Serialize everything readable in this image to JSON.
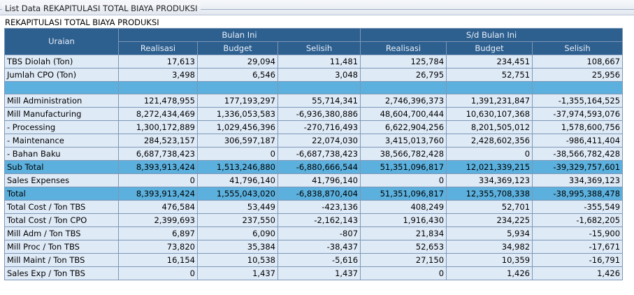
{
  "panel": {
    "title": "List Data REKAPITULASI TOTAL BIAYA PRODUKSI"
  },
  "report": {
    "title": "REKAPITULASI TOTAL BIAYA PRODUKSI"
  },
  "headers": {
    "uraian": "Uraian",
    "group1": "Bulan Ini",
    "group2": "S/d Bulan Ini",
    "sub": [
      "Realisasi",
      "Budget",
      "Selisih",
      "Realisasi",
      "Budget",
      "Selisih"
    ]
  },
  "rows": [
    {
      "label": "TBS Diolah (Ton)",
      "values": [
        "17,613",
        "29,094",
        "11,481",
        "125,784",
        "234,451",
        "108,667"
      ]
    },
    {
      "label": "Jumlah CPO (Ton)",
      "values": [
        "3,498",
        "6,546",
        "3,048",
        "26,795",
        "52,751",
        "25,956"
      ]
    },
    {
      "label": "",
      "values": [
        "",
        "",
        "",
        "",
        "",
        ""
      ],
      "style": "spacer"
    },
    {
      "label": "Mill Administration",
      "values": [
        "121,478,955",
        "177,193,297",
        "55,714,341",
        "2,746,396,373",
        "1,391,231,847",
        "-1,355,164,525"
      ]
    },
    {
      "label": "Mill Manufacturing",
      "values": [
        "8,272,434,469",
        "1,336,053,583",
        "-6,936,380,886",
        "48,604,700,444",
        "10,630,107,368",
        "-37,974,593,076"
      ]
    },
    {
      "label": "- Processing",
      "values": [
        "1,300,172,889",
        "1,029,456,396",
        "-270,716,493",
        "6,622,904,256",
        "8,201,505,012",
        "1,578,600,756"
      ]
    },
    {
      "label": "- Maintenance",
      "values": [
        "284,523,157",
        "306,597,187",
        "22,074,030",
        "3,415,013,760",
        "2,428,602,356",
        "-986,411,404"
      ]
    },
    {
      "label": "- Bahan Baku",
      "values": [
        "6,687,738,423",
        "0",
        "-6,687,738,423",
        "38,566,782,428",
        "0",
        "-38,566,782,428"
      ]
    },
    {
      "label": "Sub Total",
      "values": [
        "8,393,913,424",
        "1,513,246,880",
        "-6,880,666,544",
        "51,351,096,817",
        "12,021,339,215",
        "-39,329,757,601"
      ],
      "style": "band"
    },
    {
      "label": "Sales Expenses",
      "values": [
        "0",
        "41,796,140",
        "41,796,140",
        "0",
        "334,369,123",
        "334,369,123"
      ]
    },
    {
      "label": "Total",
      "values": [
        "8,393,913,424",
        "1,555,043,020",
        "-6,838,870,404",
        "51,351,096,817",
        "12,355,708,338",
        "-38,995,388,478"
      ],
      "style": "band"
    },
    {
      "label": "Total Cost / Ton TBS",
      "values": [
        "476,584",
        "53,449",
        "-423,136",
        "408,249",
        "52,701",
        "-355,549"
      ]
    },
    {
      "label": "Total Cost / Ton CPO",
      "values": [
        "2,399,693",
        "237,550",
        "-2,162,143",
        "1,916,430",
        "234,225",
        "-1,682,205"
      ]
    },
    {
      "label": "Mill Adm / Ton TBS",
      "values": [
        "6,897",
        "6,090",
        "-807",
        "21,834",
        "5,934",
        "-15,900"
      ]
    },
    {
      "label": "Mill Proc / Ton TBS",
      "values": [
        "73,820",
        "35,384",
        "-38,437",
        "52,653",
        "34,982",
        "-17,671"
      ]
    },
    {
      "label": "Mill Maint / Ton TBS",
      "values": [
        "16,154",
        "10,538",
        "-5,616",
        "27,150",
        "10,359",
        "-16,791"
      ]
    },
    {
      "label": "Sales Exp / Ton TBS",
      "values": [
        "0",
        "1,437",
        "1,437",
        "0",
        "1,426",
        "1,426"
      ]
    }
  ]
}
